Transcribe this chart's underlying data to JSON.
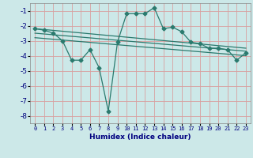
{
  "title": "",
  "xlabel": "Humidex (Indice chaleur)",
  "ylabel": "",
  "bg_color": "#cce8e8",
  "plot_bg_color": "#cce8e8",
  "grid_color": "#d8a0a0",
  "line_color": "#2a7a6e",
  "xlim": [
    -0.5,
    23.5
  ],
  "ylim": [
    -8.5,
    -0.5
  ],
  "yticks": [
    -8,
    -7,
    -6,
    -5,
    -4,
    -3,
    -2,
    -1
  ],
  "xticks": [
    0,
    1,
    2,
    3,
    4,
    5,
    6,
    7,
    8,
    9,
    10,
    11,
    12,
    13,
    14,
    15,
    16,
    17,
    18,
    19,
    20,
    21,
    22,
    23
  ],
  "main_series": {
    "x": [
      0,
      1,
      2,
      3,
      4,
      5,
      6,
      7,
      8,
      9,
      10,
      11,
      12,
      13,
      14,
      15,
      16,
      17,
      18,
      19,
      20,
      21,
      22,
      23
    ],
    "y": [
      -2.2,
      -2.3,
      -2.5,
      -3.0,
      -4.3,
      -4.3,
      -3.6,
      -4.8,
      -7.7,
      -3.1,
      -1.2,
      -1.2,
      -1.2,
      -0.8,
      -2.2,
      -2.1,
      -2.4,
      -3.1,
      -3.2,
      -3.5,
      -3.5,
      -3.6,
      -4.3,
      -3.8
    ]
  },
  "trend_lines": [
    [
      -2.2,
      -3.5
    ],
    [
      -2.5,
      -3.7
    ],
    [
      -2.8,
      -4.0
    ]
  ],
  "xlabel_fontsize": 6.5,
  "xlabel_color": "#000080",
  "tick_color": "#000080",
  "ytick_fontsize": 6.5,
  "xtick_fontsize": 5.0
}
